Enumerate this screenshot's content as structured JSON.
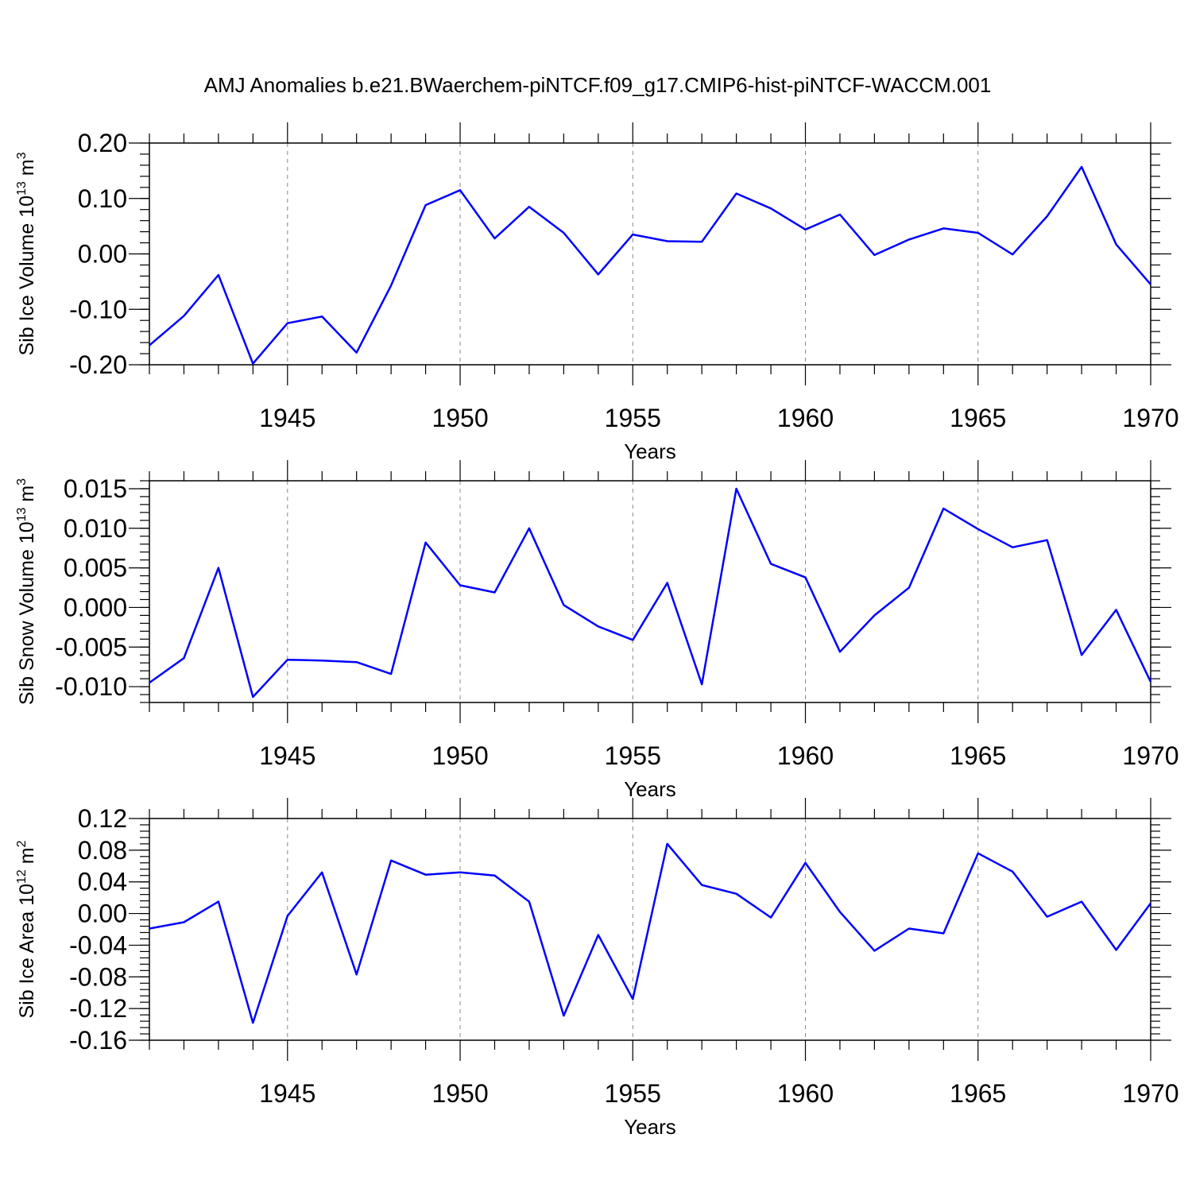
{
  "colors": {
    "series": "#0000ff",
    "axis": "#000000",
    "grid": "#888888",
    "background": "#ffffff"
  },
  "chart_data": [
    {
      "type": "line",
      "title": "AMJ Anomalies b.e21.BWaerchem-piNTCF.f09_g17.CMIP6-hist-piNTCF-WACCM.001",
      "xlabel": "Years",
      "ylabel": "Sib Ice Volume 10",
      "ylabel_exp": "13",
      "ylabel_unit": " m",
      "ylabel_unit_exp": "3",
      "xlim": [
        1941,
        1970
      ],
      "ylim": [
        -0.2,
        0.2
      ],
      "x_ticks": [
        "1945",
        "1950",
        "1955",
        "1960",
        "1965",
        "1970"
      ],
      "y_ticks": [
        "0.20",
        "0.10",
        "0.00",
        "-0.10",
        "-0.20"
      ],
      "y_tick_values": [
        0.2,
        0.1,
        0.0,
        -0.1,
        -0.2
      ],
      "y_minor_step": 0.02,
      "grid": "dashed vertical at 1945, 1950, 1955, 1960, 1965",
      "x": [
        1941,
        1942,
        1943,
        1944,
        1945,
        1946,
        1947,
        1948,
        1949,
        1950,
        1951,
        1952,
        1953,
        1954,
        1955,
        1956,
        1957,
        1958,
        1959,
        1960,
        1961,
        1962,
        1963,
        1964,
        1965,
        1966,
        1967,
        1968,
        1969,
        1970
      ],
      "values": [
        -0.165,
        -0.112,
        -0.038,
        -0.198,
        -0.125,
        -0.113,
        -0.178,
        -0.057,
        0.088,
        0.115,
        0.028,
        0.085,
        0.038,
        -0.037,
        0.035,
        0.023,
        0.022,
        0.109,
        0.082,
        0.044,
        0.071,
        -0.002,
        0.026,
        0.046,
        0.038,
        -0.001,
        0.068,
        0.157,
        0.017,
        -0.055
      ]
    },
    {
      "type": "line",
      "title": "",
      "xlabel": "Years",
      "ylabel": "Sib Snow Volume 10",
      "ylabel_exp": "13",
      "ylabel_unit": " m",
      "ylabel_unit_exp": "3",
      "xlim": [
        1941,
        1970
      ],
      "ylim": [
        -0.012,
        0.016
      ],
      "x_ticks": [
        "1945",
        "1950",
        "1955",
        "1960",
        "1965",
        "1970"
      ],
      "y_ticks": [
        "0.015",
        "0.010",
        "0.005",
        "0.000",
        "-0.005",
        "-0.010"
      ],
      "y_tick_values": [
        0.015,
        0.01,
        0.005,
        0.0,
        -0.005,
        -0.01
      ],
      "y_minor_step": 0.001,
      "grid": "dashed vertical at 1945, 1950, 1955, 1960, 1965",
      "x": [
        1941,
        1942,
        1943,
        1944,
        1945,
        1946,
        1947,
        1948,
        1949,
        1950,
        1951,
        1952,
        1953,
        1954,
        1955,
        1956,
        1957,
        1958,
        1959,
        1960,
        1961,
        1962,
        1963,
        1964,
        1965,
        1966,
        1967,
        1968,
        1969,
        1970
      ],
      "values": [
        -0.0095,
        -0.0064,
        0.005,
        -0.0113,
        -0.0066,
        -0.0067,
        -0.0069,
        -0.0084,
        0.0082,
        0.0028,
        0.0019,
        0.01,
        0.0003,
        -0.0024,
        -0.0041,
        0.0031,
        -0.0097,
        0.015,
        0.0055,
        0.0038,
        -0.0056,
        -0.001,
        0.0025,
        0.0125,
        0.0099,
        0.0076,
        0.0085,
        -0.006,
        -0.0003,
        -0.0094
      ]
    },
    {
      "type": "line",
      "title": "",
      "xlabel": "Years",
      "ylabel": "Sib Ice Area 10",
      "ylabel_exp": "12",
      "ylabel_unit": " m",
      "ylabel_unit_exp": "2",
      "xlim": [
        1941,
        1970
      ],
      "ylim": [
        -0.16,
        0.12
      ],
      "x_ticks": [
        "1945",
        "1950",
        "1955",
        "1960",
        "1965",
        "1970"
      ],
      "y_ticks": [
        "0.12",
        "0.08",
        "0.04",
        "0.00",
        "-0.04",
        "-0.08",
        "-0.12",
        "-0.16"
      ],
      "y_tick_values": [
        0.12,
        0.08,
        0.04,
        0.0,
        -0.04,
        -0.08,
        -0.12,
        -0.16
      ],
      "y_minor_step": 0.008,
      "grid": "dashed vertical at 1945, 1950, 1955, 1960, 1965",
      "x": [
        1941,
        1942,
        1943,
        1944,
        1945,
        1946,
        1947,
        1948,
        1949,
        1950,
        1951,
        1952,
        1953,
        1954,
        1955,
        1956,
        1957,
        1958,
        1959,
        1960,
        1961,
        1962,
        1963,
        1964,
        1965,
        1966,
        1967,
        1968,
        1969,
        1970
      ],
      "values": [
        -0.019,
        -0.011,
        0.015,
        -0.138,
        -0.003,
        0.052,
        -0.077,
        0.067,
        0.049,
        0.052,
        0.048,
        0.015,
        -0.129,
        -0.027,
        -0.108,
        0.088,
        0.036,
        0.025,
        -0.005,
        0.064,
        0.002,
        -0.047,
        -0.019,
        -0.025,
        0.076,
        0.053,
        -0.004,
        0.015,
        -0.046,
        0.013
      ]
    }
  ]
}
